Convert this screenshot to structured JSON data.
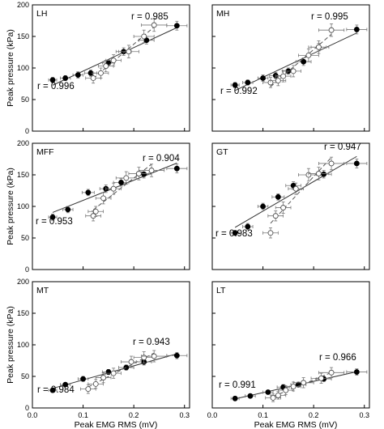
{
  "axes": {
    "xlabel": "Peak EMG RMS (mV)",
    "ylabel": "Peak pressure (kPa)",
    "xticks": [
      "0.0",
      "0.1",
      "0.2",
      "0.3"
    ],
    "yticks": [
      "0",
      "50",
      "100",
      "150",
      "200"
    ]
  },
  "chart_data": [
    {
      "type": "scatter",
      "label": "LH",
      "xlim": [
        0,
        0.31
      ],
      "ylim": [
        0,
        200
      ],
      "series": [
        {
          "marker": "filled",
          "line": "solid",
          "r": "r = 0.996",
          "x": [
            0.04,
            0.065,
            0.09,
            0.115,
            0.15,
            0.18,
            0.225,
            0.285
          ],
          "y": [
            81,
            84,
            89,
            92,
            108,
            126,
            144,
            167
          ],
          "xerr": [
            0.008,
            0.01,
            0.01,
            0.012,
            0.012,
            0.015,
            0.015,
            0.02
          ],
          "yerr": [
            4,
            4,
            5,
            5,
            5,
            6,
            6,
            7
          ]
        },
        {
          "marker": "open",
          "line": "dashed",
          "r": "r = 0.985",
          "x": [
            0.12,
            0.135,
            0.145,
            0.16,
            0.19,
            0.22,
            0.24
          ],
          "y": [
            84,
            92,
            103,
            112,
            126,
            150,
            168
          ],
          "xerr": [
            0.015,
            0.015,
            0.015,
            0.015,
            0.02,
            0.02,
            0.025
          ],
          "yerr": [
            8,
            8,
            9,
            9,
            10,
            10,
            10
          ]
        }
      ]
    },
    {
      "type": "scatter",
      "label": "MH",
      "xlim": [
        0,
        0.31
      ],
      "ylim": [
        0,
        200
      ],
      "series": [
        {
          "marker": "filled",
          "line": "solid",
          "r": "r = 0.992",
          "x": [
            0.045,
            0.07,
            0.1,
            0.125,
            0.15,
            0.18,
            0.21,
            0.285
          ],
          "y": [
            73,
            77,
            84,
            88,
            95,
            110,
            133,
            161
          ],
          "xerr": [
            0.008,
            0.01,
            0.01,
            0.012,
            0.012,
            0.015,
            0.015,
            0.02
          ],
          "yerr": [
            4,
            4,
            5,
            5,
            5,
            6,
            6,
            7
          ]
        },
        {
          "marker": "open",
          "line": "dashed",
          "r": "r = 0.995",
          "x": [
            0.115,
            0.13,
            0.14,
            0.16,
            0.19,
            0.21,
            0.235
          ],
          "y": [
            77,
            80,
            87,
            95,
            120,
            133,
            160
          ],
          "xerr": [
            0.015,
            0.015,
            0.015,
            0.015,
            0.02,
            0.02,
            0.025
          ],
          "yerr": [
            8,
            8,
            9,
            9,
            10,
            10,
            10
          ]
        }
      ]
    },
    {
      "type": "scatter",
      "label": "MFF",
      "xlim": [
        0,
        0.31
      ],
      "ylim": [
        0,
        200
      ],
      "series": [
        {
          "marker": "filled",
          "line": "solid",
          "r": "r = 0.953",
          "x": [
            0.04,
            0.07,
            0.11,
            0.145,
            0.175,
            0.22,
            0.285
          ],
          "y": [
            83,
            95,
            122,
            128,
            138,
            151,
            160
          ],
          "xerr": [
            0.008,
            0.01,
            0.012,
            0.012,
            0.015,
            0.015,
            0.02
          ],
          "yerr": [
            5,
            5,
            5,
            6,
            6,
            6,
            7
          ]
        },
        {
          "marker": "open",
          "line": "dashed",
          "r": "r = 0.904",
          "x": [
            0.12,
            0.125,
            0.14,
            0.16,
            0.185,
            0.21,
            0.235
          ],
          "y": [
            85,
            92,
            113,
            128,
            145,
            152,
            157
          ],
          "xerr": [
            0.015,
            0.015,
            0.015,
            0.015,
            0.02,
            0.02,
            0.025
          ],
          "yerr": [
            8,
            8,
            9,
            9,
            10,
            10,
            10
          ]
        }
      ]
    },
    {
      "type": "scatter",
      "label": "GT",
      "xlim": [
        0,
        0.31
      ],
      "ylim": [
        0,
        200
      ],
      "series": [
        {
          "marker": "filled",
          "line": "solid",
          "r": "r = 0.983",
          "x": [
            0.045,
            0.07,
            0.1,
            0.13,
            0.16,
            0.22,
            0.285
          ],
          "y": [
            58,
            68,
            100,
            115,
            133,
            151,
            168
          ],
          "xerr": [
            0.008,
            0.01,
            0.01,
            0.012,
            0.015,
            0.015,
            0.02
          ],
          "yerr": [
            4,
            5,
            5,
            5,
            6,
            6,
            7
          ]
        },
        {
          "marker": "open",
          "line": "dashed",
          "r": "r = 0.947",
          "x": [
            0.115,
            0.125,
            0.14,
            0.165,
            0.19,
            0.21,
            0.235
          ],
          "y": [
            58,
            85,
            98,
            128,
            150,
            152,
            168
          ],
          "xerr": [
            0.015,
            0.015,
            0.015,
            0.015,
            0.02,
            0.02,
            0.025
          ],
          "yerr": [
            8,
            8,
            9,
            9,
            10,
            10,
            10
          ]
        }
      ]
    },
    {
      "type": "scatter",
      "label": "MT",
      "xlim": [
        0,
        0.31
      ],
      "ylim": [
        0,
        200
      ],
      "series": [
        {
          "marker": "filled",
          "line": "solid",
          "r": "r = 0.984",
          "x": [
            0.04,
            0.065,
            0.1,
            0.15,
            0.185,
            0.22,
            0.285
          ],
          "y": [
            28,
            37,
            46,
            57,
            64,
            73,
            83
          ],
          "xerr": [
            0.008,
            0.01,
            0.01,
            0.012,
            0.015,
            0.015,
            0.02
          ],
          "yerr": [
            3,
            3,
            4,
            4,
            4,
            5,
            5
          ]
        },
        {
          "marker": "open",
          "line": "dashed",
          "r": "r = 0.943",
          "x": [
            0.11,
            0.125,
            0.14,
            0.16,
            0.195,
            0.22,
            0.24
          ],
          "y": [
            30,
            38,
            48,
            55,
            73,
            80,
            82
          ],
          "xerr": [
            0.015,
            0.015,
            0.015,
            0.015,
            0.02,
            0.02,
            0.025
          ],
          "yerr": [
            7,
            7,
            8,
            8,
            9,
            9,
            9
          ]
        }
      ]
    },
    {
      "type": "scatter",
      "label": "LT",
      "xlim": [
        0,
        0.31
      ],
      "ylim": [
        0,
        200
      ],
      "series": [
        {
          "marker": "filled",
          "line": "solid",
          "r": "r = 0.991",
          "x": [
            0.045,
            0.075,
            0.11,
            0.14,
            0.17,
            0.22,
            0.285
          ],
          "y": [
            15,
            19,
            25,
            33,
            37,
            46,
            57
          ],
          "xerr": [
            0.008,
            0.01,
            0.01,
            0.012,
            0.015,
            0.015,
            0.02
          ],
          "yerr": [
            3,
            3,
            3,
            4,
            4,
            4,
            5
          ]
        },
        {
          "marker": "open",
          "line": "dashed",
          "r": "r = 0.966",
          "x": [
            0.12,
            0.13,
            0.145,
            0.16,
            0.18,
            0.215,
            0.235
          ],
          "y": [
            16,
            20,
            28,
            34,
            40,
            47,
            56
          ],
          "xerr": [
            0.015,
            0.015,
            0.015,
            0.015,
            0.02,
            0.02,
            0.025
          ],
          "yerr": [
            6,
            6,
            7,
            7,
            8,
            8,
            8
          ]
        }
      ]
    }
  ]
}
